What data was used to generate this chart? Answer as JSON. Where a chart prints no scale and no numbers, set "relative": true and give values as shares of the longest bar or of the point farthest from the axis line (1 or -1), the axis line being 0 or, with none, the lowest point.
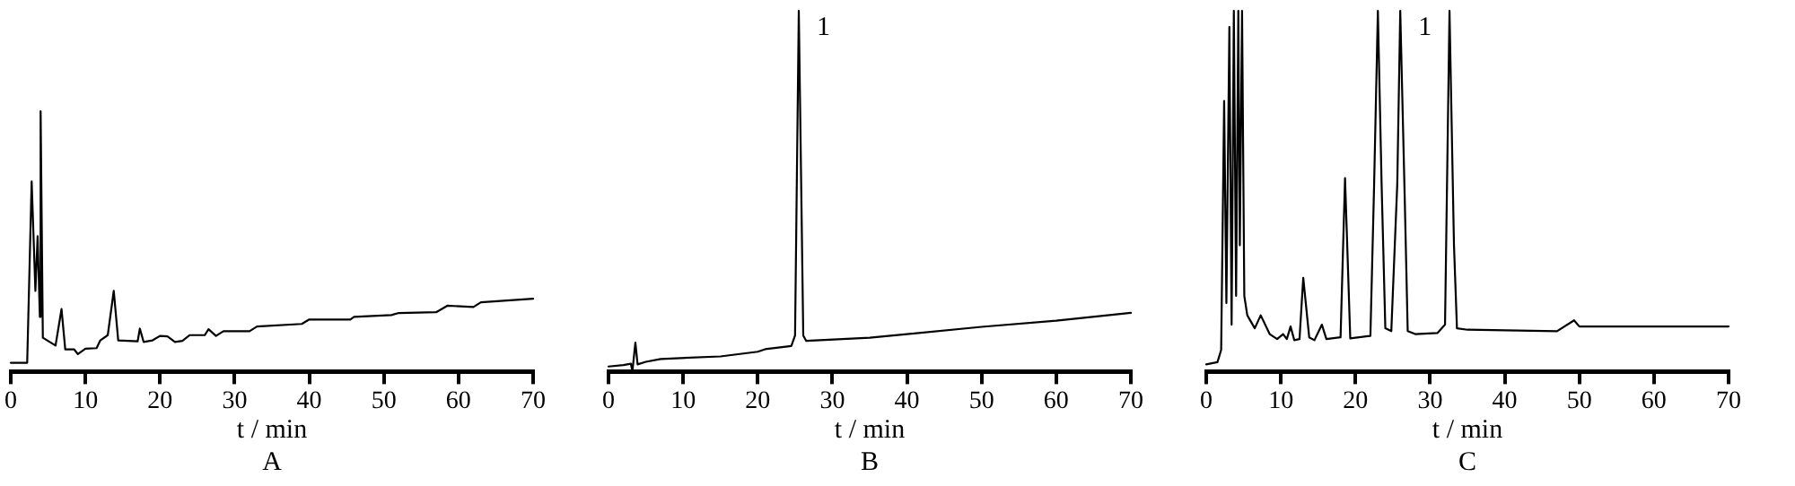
{
  "chart_data": [
    {
      "type": "line",
      "title": "A",
      "xlabel": "t / min",
      "relative": true,
      "color": "#000000",
      "xlim": [
        0,
        70
      ],
      "xticks": [
        0,
        10,
        20,
        30,
        40,
        50,
        60,
        70
      ],
      "x": [
        0,
        2.2,
        2.8,
        3.3,
        3.6,
        3.9,
        4.0,
        4.3,
        6,
        6.8,
        7.3,
        8.5,
        9,
        10,
        11.5,
        12,
        13,
        13.8,
        14.4,
        17,
        17.3,
        17.8,
        19,
        20,
        21,
        22,
        23,
        24,
        26,
        26.5,
        27.5,
        28.5,
        32,
        33,
        39,
        40,
        45.5,
        46,
        51,
        52,
        57,
        58.5,
        62,
        63,
        70
      ],
      "values": [
        0.034,
        0.034,
        0.73,
        0.31,
        0.52,
        0.21,
        1,
        0.13,
        0.1,
        0.24,
        0.085,
        0.085,
        0.067,
        0.088,
        0.09,
        0.12,
        0.14,
        0.31,
        0.12,
        0.116,
        0.165,
        0.114,
        0.12,
        0.137,
        0.135,
        0.114,
        0.118,
        0.14,
        0.14,
        0.163,
        0.137,
        0.155,
        0.155,
        0.173,
        0.183,
        0.2,
        0.2,
        0.21,
        0.217,
        0.225,
        0.228,
        0.253,
        0.248,
        0.266,
        0.28
      ]
    },
    {
      "type": "line",
      "title": "B",
      "xlabel": "t / min",
      "relative": true,
      "color": "#000000",
      "xlim": [
        0,
        70
      ],
      "xticks": [
        0,
        10,
        20,
        30,
        40,
        50,
        60,
        70
      ],
      "annotations": [
        {
          "text": "1",
          "x": 25.5,
          "y": 1
        }
      ],
      "x": [
        0,
        2,
        3,
        3.2,
        3.6,
        3.9,
        5,
        7,
        15,
        20,
        21,
        24.5,
        25,
        25.5,
        26.1,
        26.5,
        35,
        40,
        50,
        60,
        70
      ],
      "values": [
        0.014,
        0.018,
        0.022,
        0,
        0.08,
        0.02,
        0.027,
        0.035,
        0.042,
        0.055,
        0.062,
        0.071,
        0.1,
        1,
        0.1,
        0.085,
        0.094,
        0.104,
        0.124,
        0.141,
        0.163
      ]
    },
    {
      "type": "line",
      "title": "C",
      "xlabel": "t / min",
      "relative": true,
      "color": "#000000",
      "xlim": [
        0,
        70
      ],
      "xticks": [
        0,
        10,
        20,
        30,
        40,
        50,
        60,
        70
      ],
      "annotations": [
        {
          "text": "1",
          "x": 26,
          "y": 1
        }
      ],
      "x": [
        0,
        1.5,
        2,
        2.4,
        2.7,
        3.1,
        3.4,
        3.7,
        4.0,
        4.3,
        4.5,
        4.8,
        5.1,
        5.5,
        6.5,
        7.3,
        8.5,
        9.5,
        10.3,
        10.8,
        11.3,
        11.8,
        12.5,
        13,
        13.8,
        14.5,
        15.5,
        16.1,
        18,
        18.6,
        19.3,
        22,
        22.5,
        23,
        23.5,
        24,
        24.8,
        25.6,
        26,
        26.6,
        27,
        28,
        31,
        32,
        32.6,
        33.2,
        33.6,
        35,
        47,
        49.3,
        50,
        70
      ],
      "values": [
        0.02,
        0.026,
        0.06,
        0.75,
        0.19,
        0.955,
        0.13,
        1,
        0.21,
        1,
        0.35,
        1,
        0.21,
        0.156,
        0.12,
        0.156,
        0.104,
        0.09,
        0.104,
        0.09,
        0.125,
        0.087,
        0.09,
        0.26,
        0.095,
        0.087,
        0.13,
        0.09,
        0.095,
        0.536,
        0.092,
        0.099,
        0.52,
        1,
        0.52,
        0.12,
        0.112,
        0.52,
        1,
        0.48,
        0.112,
        0.104,
        0.107,
        0.13,
        1,
        0.35,
        0.12,
        0.116,
        0.112,
        0.142,
        0.125,
        0.125
      ]
    }
  ]
}
